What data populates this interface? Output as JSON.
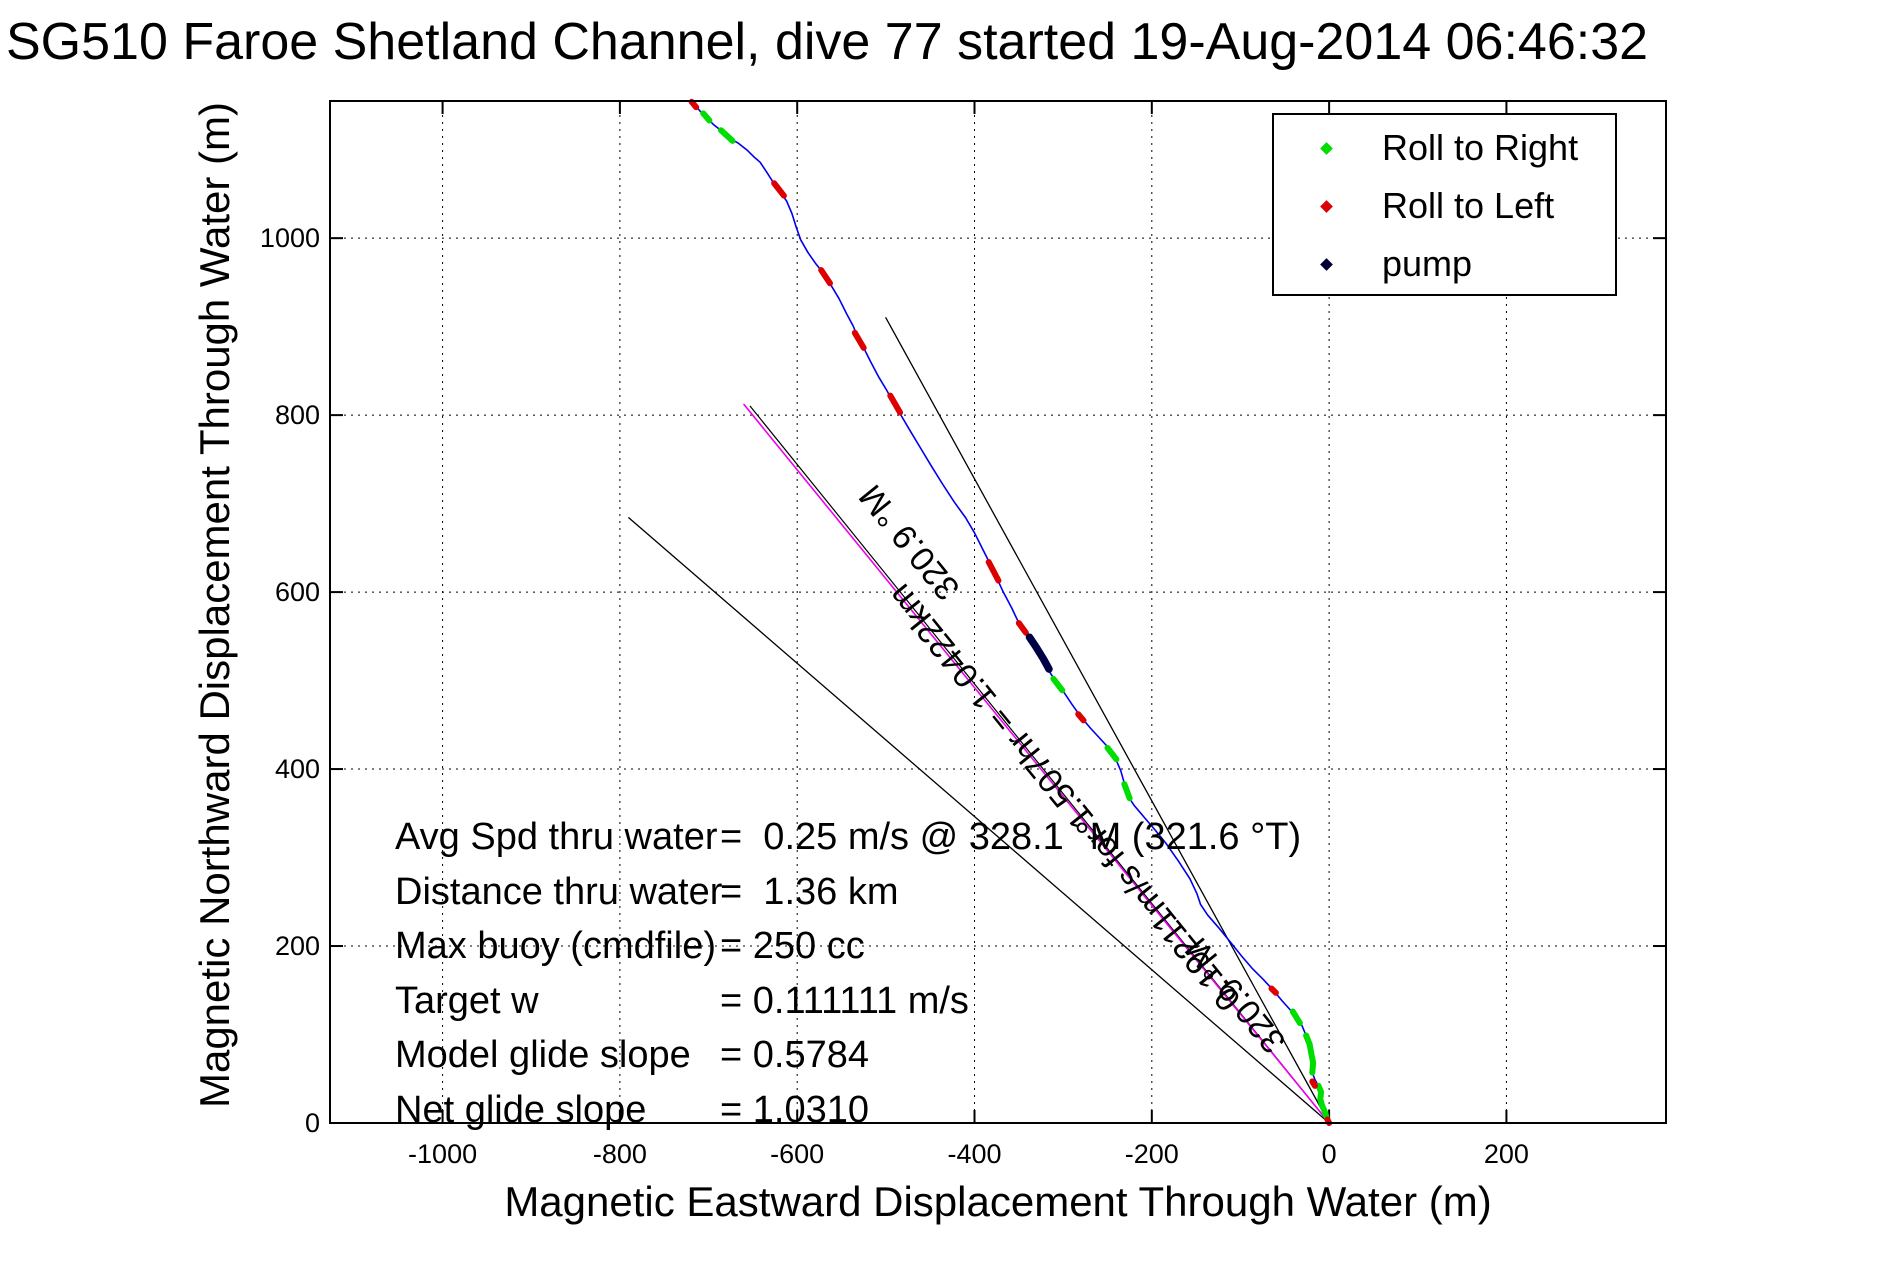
{
  "title": "SG510 Faroe Shetland Channel, dive 77 started 19-Aug-2014 06:46:32",
  "axes": {
    "xlabel": "Magnetic Eastward Displacement Through Water (m)",
    "ylabel": "Magnetic Northward Displacement Through Water (m)"
  },
  "legend": {
    "entries": [
      {
        "label": "Roll to Right",
        "color": "#00DD00"
      },
      {
        "label": "Roll to Left",
        "color": "#DD0000"
      },
      {
        "label": "pump",
        "color": "#000033"
      }
    ]
  },
  "stats": {
    "rows": [
      {
        "label": "Avg Spd thru water",
        "value": "=  0.25 m/s @ 328.1 °M (321.6 °T)"
      },
      {
        "label": "Distance thru water",
        "value": "=  1.36 km"
      },
      {
        "label": "Max buoy (cmdfile)",
        "value": "= 250 cc"
      },
      {
        "label": "Target w",
        "value": "= 0.111111 m/s"
      },
      {
        "label": "Model glide slope",
        "value": "= 0.5784"
      },
      {
        "label": "Net glide slope",
        "value": "= 1.0310"
      }
    ]
  },
  "chart_data": {
    "type": "line",
    "title": "SG510 Faroe Shetland Channel, dive 77 started 19-Aug-2014 06:46:32",
    "xlabel": "Magnetic Eastward Displacement Through Water (m)",
    "ylabel": "Magnetic Northward Displacement Through Water (m)",
    "xlim": [
      -1127,
      380
    ],
    "ylim": [
      0,
      1155
    ],
    "xticks": [
      -1000,
      -800,
      -600,
      -400,
      -200,
      0,
      200
    ],
    "yticks": [
      0,
      200,
      400,
      600,
      800,
      1000
    ],
    "grid": true,
    "legend_position": "upper right",
    "annotations": [
      {
        "text": "320.9 °M",
        "x": -473,
        "y": 657,
        "rotation": -129
      },
      {
        "text": "0.19211m/s for 1.507hr = 1.0422km",
        "x": -298,
        "y": 368,
        "rotation": -129
      },
      {
        "text": "320.9 °M",
        "x": -105,
        "y": 145,
        "rotation": -129
      }
    ],
    "series": [
      {
        "name": "fan-line-right",
        "color": "#000000",
        "width": 1.3,
        "style": "solid",
        "points": [
          [
            0,
            0
          ],
          [
            -500,
            910
          ]
        ]
      },
      {
        "name": "fan-line-left",
        "color": "#000000",
        "width": 1.3,
        "style": "solid",
        "points": [
          [
            0,
            0
          ],
          [
            -790,
            684
          ]
        ]
      },
      {
        "name": "dr-line",
        "color": "#000000",
        "width": 1.2,
        "style": "solid",
        "points": [
          [
            0,
            0
          ],
          [
            -653,
            810
          ]
        ]
      },
      {
        "name": "bearing-line",
        "color": "#EE00EE",
        "width": 1.6,
        "style": "solid",
        "points": [
          [
            0,
            0
          ],
          [
            -660,
            812
          ]
        ]
      },
      {
        "name": "track",
        "color": "#0000EE",
        "width": 1.6,
        "style": "solid",
        "points": [
          [
            -718,
            1155
          ],
          [
            -710,
            1144
          ],
          [
            -703,
            1137
          ],
          [
            -694,
            1128
          ],
          [
            -685,
            1121
          ],
          [
            -676,
            1113
          ],
          [
            -666,
            1107
          ],
          [
            -656,
            1099
          ],
          [
            -649,
            1092
          ],
          [
            -642,
            1086
          ],
          [
            -634,
            1074
          ],
          [
            -627,
            1063
          ],
          [
            -619,
            1052
          ],
          [
            -612,
            1042
          ],
          [
            -606,
            1028
          ],
          [
            -601,
            1012
          ],
          [
            -596,
            998
          ],
          [
            -588,
            984
          ],
          [
            -579,
            971
          ],
          [
            -571,
            961
          ],
          [
            -562,
            947
          ],
          [
            -553,
            932
          ],
          [
            -544,
            914
          ],
          [
            -537,
            901
          ],
          [
            -532,
            889
          ],
          [
            -524,
            874
          ],
          [
            -517,
            860
          ],
          [
            -508,
            843
          ],
          [
            -499,
            828
          ],
          [
            -490,
            812
          ],
          [
            -483,
            800
          ],
          [
            -473,
            783
          ],
          [
            -461,
            763
          ],
          [
            -449,
            743
          ],
          [
            -436,
            722
          ],
          [
            -423,
            702
          ],
          [
            -410,
            684
          ],
          [
            -400,
            667
          ],
          [
            -391,
            649
          ],
          [
            -382,
            631
          ],
          [
            -374,
            614
          ],
          [
            -368,
            601
          ],
          [
            -358,
            582
          ],
          [
            -349,
            563
          ],
          [
            -341,
            553
          ],
          [
            -333,
            541
          ],
          [
            -325,
            529
          ],
          [
            -318,
            514
          ],
          [
            -309,
            500
          ],
          [
            -300,
            488
          ],
          [
            -290,
            473
          ],
          [
            -280,
            459
          ],
          [
            -269,
            446
          ],
          [
            -257,
            433
          ],
          [
            -247,
            422
          ],
          [
            -241,
            412
          ],
          [
            -235,
            398
          ],
          [
            -231,
            384
          ],
          [
            -228,
            371
          ],
          [
            -220,
            359
          ],
          [
            -209,
            346
          ],
          [
            -197,
            332
          ],
          [
            -184,
            316
          ],
          [
            -170,
            296
          ],
          [
            -157,
            276
          ],
          [
            -149,
            259
          ],
          [
            -145,
            247
          ],
          [
            -137,
            235
          ],
          [
            -124,
            220
          ],
          [
            -111,
            204
          ],
          [
            -99,
            189
          ],
          [
            -87,
            175
          ],
          [
            -74,
            162
          ],
          [
            -63,
            150
          ],
          [
            -53,
            138
          ],
          [
            -44,
            128
          ],
          [
            -38,
            121
          ],
          [
            -31,
            111
          ],
          [
            -26,
            99
          ],
          [
            -22,
            89
          ],
          [
            -20,
            78
          ],
          [
            -18,
            68
          ],
          [
            -19,
            57
          ],
          [
            -16,
            49
          ],
          [
            -12,
            42
          ],
          [
            -9,
            35
          ],
          [
            -10,
            27
          ],
          [
            -8,
            20
          ],
          [
            -5,
            13
          ],
          [
            -2,
            6
          ],
          [
            0,
            0
          ]
        ]
      },
      {
        "name": "roll-to-right",
        "color": "#00DD00",
        "width": 6,
        "style": "segments",
        "segments": [
          [
            [
              -706,
              1141
            ],
            [
              -699,
              1133
            ]
          ],
          [
            [
              -686,
              1122
            ],
            [
              -673,
              1110
            ]
          ],
          [
            [
              -311,
              502
            ],
            [
              -301,
              489
            ]
          ],
          [
            [
              -250,
              424
            ],
            [
              -240,
              411
            ]
          ],
          [
            [
              -231,
              383
            ],
            [
              -225,
              367
            ]
          ],
          [
            [
              -41,
              126
            ],
            [
              -33,
              113
            ]
          ],
          [
            [
              -26,
              99
            ],
            [
              -22,
              89
            ],
            [
              -20,
              78
            ],
            [
              -18,
              68
            ],
            [
              -19,
              57
            ]
          ],
          [
            [
              -12,
              42
            ],
            [
              -9,
              35
            ],
            [
              -10,
              27
            ],
            [
              -8,
              20
            ],
            [
              -5,
              13
            ],
            [
              -3,
              7
            ]
          ]
        ]
      },
      {
        "name": "roll-to-left",
        "color": "#DD0000",
        "width": 6,
        "style": "segments",
        "segments": [
          [
            [
              -719,
              1154
            ],
            [
              -714,
              1148
            ]
          ],
          [
            [
              -626,
              1062
            ],
            [
              -615,
              1048
            ]
          ],
          [
            [
              -573,
              964
            ],
            [
              -563,
              949
            ]
          ],
          [
            [
              -535,
              893
            ],
            [
              -525,
              876
            ]
          ],
          [
            [
              -495,
              822
            ],
            [
              -484,
              803
            ]
          ],
          [
            [
              -384,
              634
            ],
            [
              -373,
              613
            ]
          ],
          [
            [
              -350,
              565
            ],
            [
              -342,
              554
            ]
          ],
          [
            [
              -283,
              462
            ],
            [
              -277,
              455
            ]
          ],
          [
            [
              -65,
              152
            ],
            [
              -60,
              147
            ]
          ],
          [
            [
              -19,
              47
            ],
            [
              -16,
              42
            ]
          ],
          [
            [
              -2,
              4
            ],
            [
              0,
              0
            ]
          ]
        ]
      },
      {
        "name": "pump",
        "color": "#000044",
        "width": 7.5,
        "style": "segments",
        "segments": [
          [
            [
              -338,
              549
            ],
            [
              -330,
              537
            ],
            [
              -322,
              524
            ],
            [
              -316,
              513
            ]
          ]
        ]
      }
    ]
  }
}
